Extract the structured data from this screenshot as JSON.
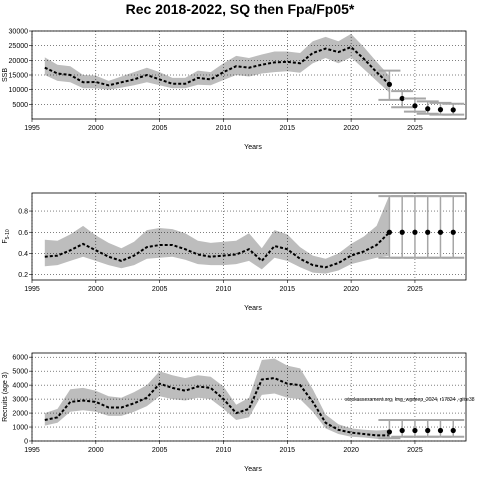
{
  "title": "Rec 2018-2022, SQ then Fpa/Fp05*",
  "annotation": "stockassessment.org, lmg_wgdeep_2024, r17824 , git:e38",
  "colors": {
    "band": "#bdbdbd",
    "line": "#000000",
    "proj_interval": "#a6a6a6",
    "grid": "#000000"
  },
  "chart_data": [
    {
      "type": "line",
      "id": "ssb",
      "ylabel": "SSB",
      "xlabel": "Years",
      "xlim": [
        1995,
        2029
      ],
      "ylim": [
        0,
        30000
      ],
      "xticks": [
        1995,
        2000,
        2005,
        2010,
        2015,
        2020,
        2025
      ],
      "yticks": [
        5000,
        10000,
        15000,
        20000,
        25000,
        30000
      ],
      "grid": true,
      "x": [
        1996,
        1997,
        1998,
        1999,
        2000,
        2001,
        2002,
        2003,
        2004,
        2005,
        2006,
        2007,
        2008,
        2009,
        2010,
        2011,
        2012,
        2013,
        2014,
        2015,
        2016,
        2017,
        2018,
        2019,
        2020,
        2021,
        2022,
        2023
      ],
      "estimate": [
        17500,
        15500,
        15000,
        12500,
        12600,
        11500,
        12500,
        13500,
        15000,
        13500,
        12000,
        12000,
        14000,
        13500,
        16000,
        18000,
        17500,
        18500,
        19300,
        19500,
        19000,
        22500,
        24000,
        22800,
        24500,
        20500,
        16000,
        11800
      ],
      "lower": [
        15000,
        13000,
        12500,
        10500,
        10500,
        10000,
        10700,
        11500,
        12500,
        11500,
        10500,
        10500,
        11700,
        11500,
        13300,
        15000,
        14500,
        15500,
        16000,
        16300,
        15800,
        19000,
        20800,
        19000,
        21000,
        17000,
        13000,
        9000
      ],
      "upper": [
        21000,
        18500,
        18000,
        15000,
        14800,
        13000,
        14500,
        16000,
        17500,
        16000,
        14000,
        14000,
        16500,
        16000,
        19000,
        21500,
        20800,
        22000,
        23000,
        23000,
        22500,
        26500,
        28000,
        26500,
        29000,
        24500,
        19500,
        14700
      ],
      "projection": {
        "x": [
          2023,
          2024,
          2025,
          2026,
          2027,
          2028
        ],
        "median": [
          11800,
          7000,
          4500,
          3500,
          3200,
          3100
        ],
        "lower": [
          6500,
          4000,
          2500,
          1800,
          1500,
          1500
        ],
        "upper": [
          16500,
          9500,
          7000,
          6000,
          5500,
          5200
        ]
      }
    },
    {
      "type": "line",
      "id": "fbar",
      "ylabel": "F5-10",
      "ylabel_main": "F",
      "ylabel_sub": "5-10",
      "xlabel": "Years",
      "xlim": [
        1995,
        2029
      ],
      "ylim": [
        0.15,
        0.97
      ],
      "xticks": [
        1995,
        2000,
        2005,
        2010,
        2015,
        2020,
        2025
      ],
      "yticks": [
        0.2,
        0.4,
        0.6,
        0.8
      ],
      "grid": true,
      "x": [
        1996,
        1997,
        1998,
        1999,
        2000,
        2001,
        2002,
        2003,
        2004,
        2005,
        2006,
        2007,
        2008,
        2009,
        2010,
        2011,
        2012,
        2013,
        2014,
        2015,
        2016,
        2017,
        2018,
        2019,
        2020,
        2021,
        2022,
        2023
      ],
      "estimate": [
        0.37,
        0.38,
        0.43,
        0.49,
        0.43,
        0.37,
        0.33,
        0.38,
        0.46,
        0.48,
        0.48,
        0.44,
        0.39,
        0.37,
        0.38,
        0.39,
        0.44,
        0.33,
        0.47,
        0.44,
        0.35,
        0.29,
        0.27,
        0.31,
        0.38,
        0.42,
        0.48,
        0.6
      ],
      "lower": [
        0.28,
        0.29,
        0.33,
        0.37,
        0.33,
        0.29,
        0.26,
        0.29,
        0.35,
        0.36,
        0.37,
        0.34,
        0.3,
        0.29,
        0.29,
        0.3,
        0.33,
        0.25,
        0.36,
        0.33,
        0.27,
        0.22,
        0.21,
        0.24,
        0.3,
        0.33,
        0.36,
        0.38
      ],
      "upper": [
        0.53,
        0.52,
        0.58,
        0.66,
        0.57,
        0.5,
        0.45,
        0.51,
        0.62,
        0.64,
        0.63,
        0.59,
        0.52,
        0.5,
        0.51,
        0.52,
        0.59,
        0.45,
        0.62,
        0.58,
        0.46,
        0.38,
        0.35,
        0.4,
        0.49,
        0.56,
        0.66,
        0.95
      ],
      "projection": {
        "x": [
          2023,
          2024,
          2025,
          2026,
          2027,
          2028
        ],
        "median": [
          0.6,
          0.6,
          0.6,
          0.6,
          0.6,
          0.6
        ],
        "lower": [
          0.36,
          0.36,
          0.36,
          0.36,
          0.36,
          0.36
        ],
        "upper": [
          0.94,
          0.94,
          0.94,
          0.94,
          0.94,
          0.94
        ]
      }
    },
    {
      "type": "line",
      "id": "recruits",
      "ylabel": "Recruits (age 3)",
      "xlabel": "Years",
      "xlim": [
        1995,
        2029
      ],
      "ylim": [
        0,
        6300
      ],
      "xticks": [
        1995,
        2000,
        2005,
        2010,
        2015,
        2020,
        2025
      ],
      "yticks": [
        0,
        1000,
        2000,
        3000,
        4000,
        5000,
        6000
      ],
      "grid": true,
      "x": [
        1996,
        1997,
        1998,
        1999,
        2000,
        2001,
        2002,
        2003,
        2004,
        2005,
        2006,
        2007,
        2008,
        2009,
        2010,
        2011,
        2012,
        2013,
        2014,
        2015,
        2016,
        2017,
        2018,
        2019,
        2020,
        2021,
        2022,
        2023
      ],
      "estimate": [
        1500,
        1700,
        2800,
        2900,
        2800,
        2400,
        2400,
        2700,
        3100,
        4100,
        3800,
        3600,
        3900,
        3800,
        3000,
        2000,
        2300,
        4400,
        4500,
        4100,
        4000,
        2800,
        1300,
        800,
        600,
        500,
        400,
        400
      ],
      "lower": [
        1100,
        1300,
        2100,
        2200,
        2100,
        1800,
        1800,
        2100,
        2500,
        3200,
        3000,
        2900,
        3100,
        3000,
        2300,
        1500,
        1700,
        3300,
        3400,
        3100,
        3000,
        2100,
        900,
        500,
        300,
        250,
        150,
        100
      ],
      "upper": [
        2000,
        2300,
        3700,
        3800,
        3600,
        3200,
        3100,
        3500,
        4000,
        5000,
        4700,
        4500,
        4700,
        4600,
        3900,
        2600,
        3100,
        5800,
        5900,
        5400,
        5200,
        3700,
        1900,
        1200,
        900,
        800,
        750,
        800
      ],
      "projection": {
        "x": [
          2023,
          2024,
          2025,
          2026,
          2027,
          2028
        ],
        "median": [
          650,
          750,
          750,
          750,
          750,
          750
        ],
        "lower": [
          200,
          300,
          300,
          300,
          300,
          300
        ],
        "upper": [
          1500,
          1500,
          1500,
          1500,
          1500,
          1500
        ]
      }
    }
  ]
}
